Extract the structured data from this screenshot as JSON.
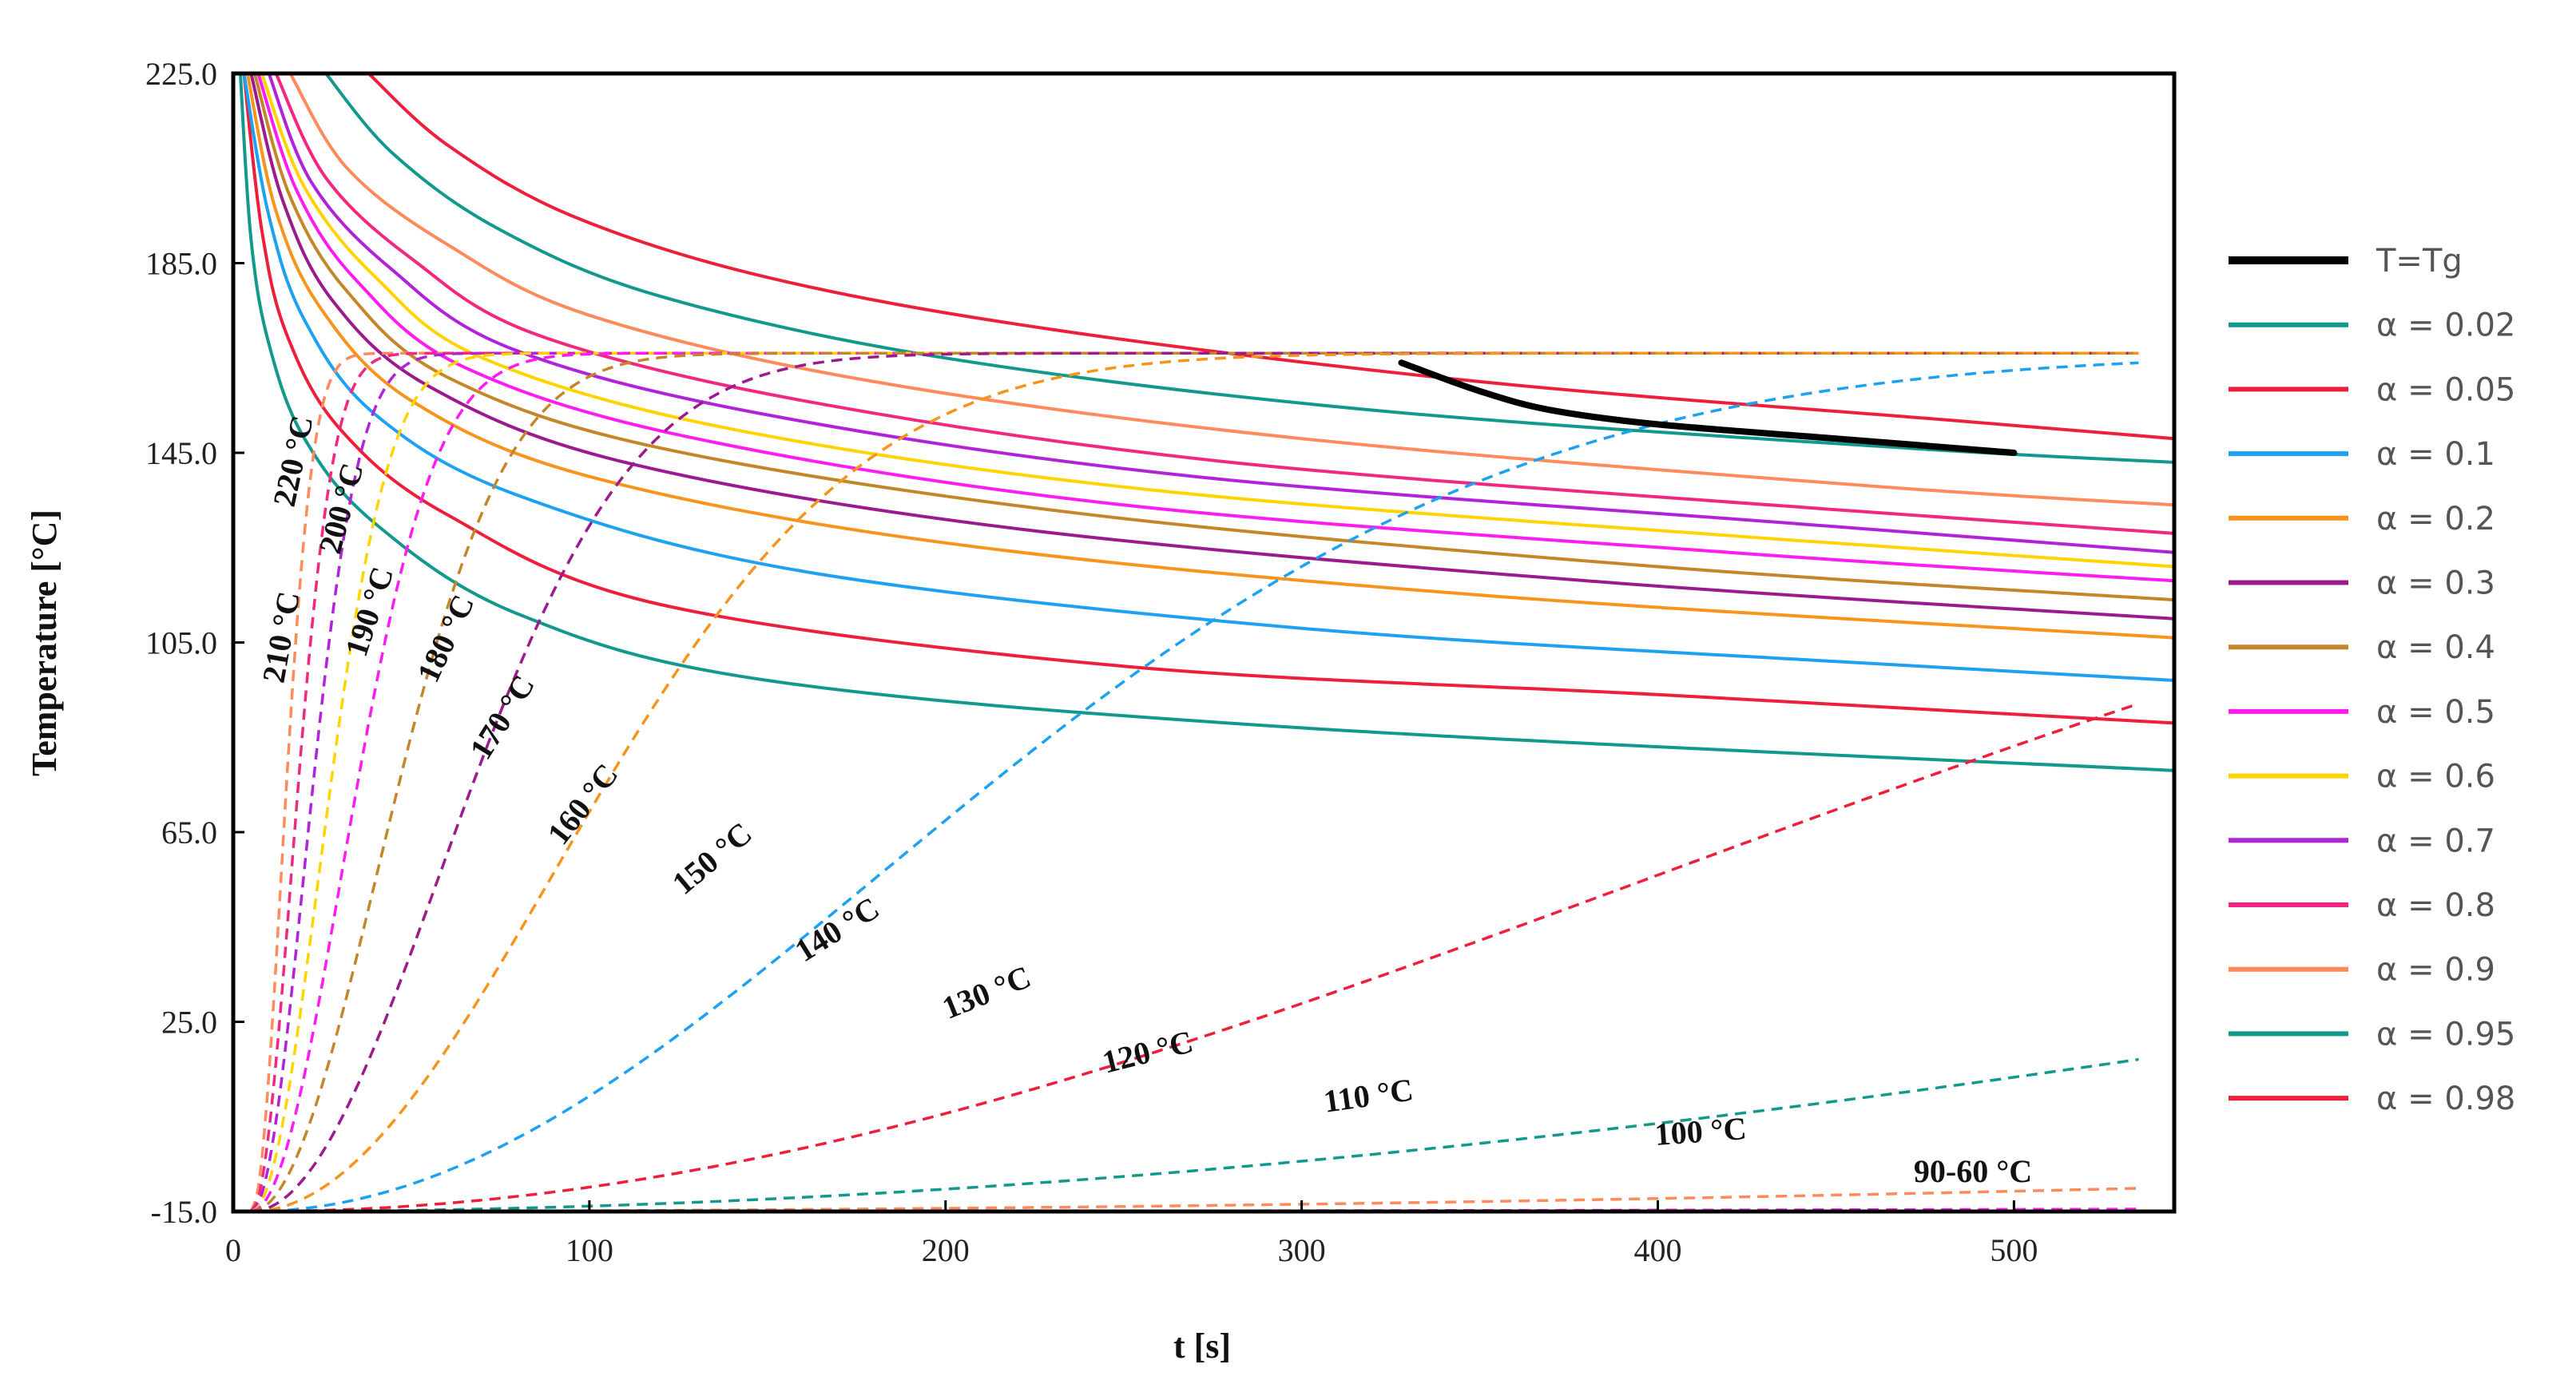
{
  "chart_data": {
    "type": "line",
    "xlabel": "t [s]",
    "ylabel": "Temperature [°C]",
    "xlim": [
      0,
      545
    ],
    "ylim": [
      -15,
      225
    ],
    "xticks": [
      0,
      100,
      200,
      300,
      400,
      500
    ],
    "xtick_labels": [
      "0",
      "100",
      "200",
      "300",
      "400",
      "500"
    ],
    "yticks": [
      -15,
      25,
      65,
      105,
      145,
      185,
      225
    ],
    "ytick_labels": [
      "-15.0",
      "25.0",
      "65.0",
      "105.0",
      "145.0",
      "185.0",
      "225.0"
    ],
    "grid": false,
    "legend_position": "right",
    "tg_series": {
      "name": "T=Tg",
      "color": "#000000",
      "x": [
        328,
        350,
        370,
        400,
        450,
        500
      ],
      "y": [
        164,
        158,
        154,
        151,
        148,
        145
      ]
    },
    "alpha_series": [
      {
        "name": "α = 0.02",
        "color": "#12998C",
        "x": [
          2,
          5,
          10,
          20,
          40,
          80,
          150,
          300,
          545
        ],
        "y": [
          225,
          190,
          168,
          148,
          130,
          111,
          97,
          87,
          78
        ]
      },
      {
        "name": "α = 0.05",
        "color": "#EE1F3B",
        "x": [
          3,
          8,
          15,
          30,
          60,
          120,
          250,
          400,
          545
        ],
        "y": [
          225,
          192,
          170,
          150,
          132,
          113,
          100,
          94,
          88
        ]
      },
      {
        "name": "α = 0.1",
        "color": "#1DA1F2",
        "x": [
          3,
          10,
          20,
          40,
          80,
          160,
          300,
          450,
          545
        ],
        "y": [
          225,
          195,
          173,
          153,
          136,
          120,
          108,
          101,
          97
        ]
      },
      {
        "name": "α = 0.2",
        "color": "#F7941D",
        "x": [
          4,
          12,
          25,
          50,
          100,
          200,
          350,
          545
        ],
        "y": [
          225,
          196,
          175,
          156,
          140,
          126,
          115,
          106
        ]
      },
      {
        "name": "α = 0.3",
        "color": "#9B1B8E",
        "x": [
          5,
          14,
          28,
          55,
          110,
          220,
          380,
          545
        ],
        "y": [
          225,
          198,
          177,
          159,
          143,
          129,
          118,
          110
        ]
      },
      {
        "name": "α = 0.4",
        "color": "#C4862A",
        "x": [
          6,
          16,
          32,
          60,
          120,
          240,
          400,
          545
        ],
        "y": [
          225,
          199,
          179,
          161,
          146,
          132,
          121,
          114
        ]
      },
      {
        "name": "α = 0.5",
        "color": "#FF1CF0",
        "x": [
          7,
          18,
          35,
          65,
          130,
          250,
          420,
          545
        ],
        "y": [
          225,
          200,
          181,
          163,
          148,
          134,
          124,
          118
        ]
      },
      {
        "name": "α = 0.6",
        "color": "#FFD400",
        "x": [
          8,
          20,
          40,
          70,
          140,
          260,
          430,
          545
        ],
        "y": [
          225,
          201,
          182,
          165,
          150,
          137,
          127,
          121
        ]
      },
      {
        "name": "α = 0.7",
        "color": "#B023D9",
        "x": [
          10,
          22,
          44,
          78,
          150,
          270,
          440,
          545
        ],
        "y": [
          225,
          202,
          184,
          167,
          153,
          140,
          130,
          124
        ]
      },
      {
        "name": "α = 0.8",
        "color": "#F2277F",
        "x": [
          12,
          26,
          50,
          85,
          160,
          280,
          450,
          545
        ],
        "y": [
          225,
          203,
          186,
          170,
          156,
          143,
          133,
          128
        ]
      },
      {
        "name": "α = 0.9",
        "color": "#FF8A5B",
        "x": [
          16,
          32,
          60,
          100,
          180,
          300,
          460,
          545
        ],
        "y": [
          225,
          205,
          189,
          174,
          160,
          148,
          138,
          134
        ]
      },
      {
        "name": "α = 0.95",
        "color": "#12998C",
        "x": [
          26,
          45,
          75,
          120,
          200,
          320,
          470,
          545
        ],
        "y": [
          225,
          208,
          192,
          178,
          165,
          154,
          146,
          143
        ]
      },
      {
        "name": "α = 0.98",
        "color": "#EE1F3B",
        "x": [
          38,
          60,
          95,
          150,
          230,
          350,
          480,
          545
        ],
        "y": [
          225,
          210,
          195,
          182,
          171,
          160,
          152,
          148
        ]
      }
    ],
    "isotherms": [
      {
        "label": "220 °C",
        "color": "#FF8A5B",
        "tau": 12
      },
      {
        "label": "210 °C",
        "color": "#F2277F",
        "tau": 16
      },
      {
        "label": "200 °C",
        "color": "#B023D9",
        "tau": 21
      },
      {
        "label": "190 °C",
        "color": "#FFD400",
        "tau": 27
      },
      {
        "label": "180 °C",
        "color": "#FF1CF0",
        "tau": 36
      },
      {
        "label": "170 °C",
        "color": "#C4862A",
        "tau": 50
      },
      {
        "label": "160 °C",
        "color": "#9B1B8E",
        "tau": 75
      },
      {
        "label": "150 °C",
        "color": "#F7941D",
        "tau": 120
      },
      {
        "label": "140 °C",
        "color": "#1DA1F2",
        "tau": 250
      },
      {
        "label": "130 °C",
        "color": "#EE1F3B",
        "tau": 560
      },
      {
        "label": "120 °C",
        "color": "#12998C",
        "tau": 1200
      },
      {
        "label": "110 °C",
        "color": "#FF8A5B",
        "tau": 3200
      },
      {
        "label": "100 °C",
        "color": "#FF1CF0",
        "tau": 10000
      },
      {
        "label": "90-60 °C",
        "color": "#B023D9",
        "tau": 25000
      },
      {
        "label": "",
        "color": "#FFD400",
        "tau": 40000
      },
      {
        "label": "",
        "color": "#C4862A",
        "tau": 60000
      },
      {
        "label": "",
        "color": "#F2277F",
        "tau": 90000
      },
      {
        "label": "",
        "color": "#EE1F3B",
        "tau": 140000
      }
    ],
    "isotherm_plateau": 166
  }
}
